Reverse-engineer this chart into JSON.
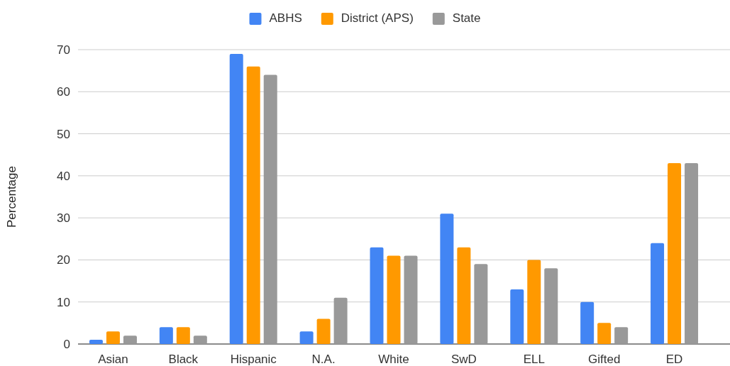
{
  "chart_data": {
    "type": "bar",
    "ylabel": "Percentage",
    "categories": [
      "Asian",
      "Black",
      "Hispanic",
      "N.A.",
      "White",
      "SwD",
      "ELL",
      "Gifted",
      "ED"
    ],
    "series": [
      {
        "name": "ABHS",
        "color": "#4285f4",
        "values": [
          1,
          4,
          69,
          3,
          23,
          31,
          13,
          10,
          24
        ]
      },
      {
        "name": "District (APS)",
        "color": "#ff9900",
        "values": [
          3,
          4,
          66,
          6,
          21,
          23,
          20,
          5,
          43
        ]
      },
      {
        "name": "State",
        "color": "#999999",
        "values": [
          2,
          2,
          64,
          11,
          21,
          19,
          18,
          4,
          43
        ]
      }
    ],
    "ylim": [
      0,
      70
    ],
    "yticks": [
      0,
      10,
      20,
      30,
      40,
      50,
      60,
      70
    ],
    "grid": "y",
    "legend": "top"
  }
}
